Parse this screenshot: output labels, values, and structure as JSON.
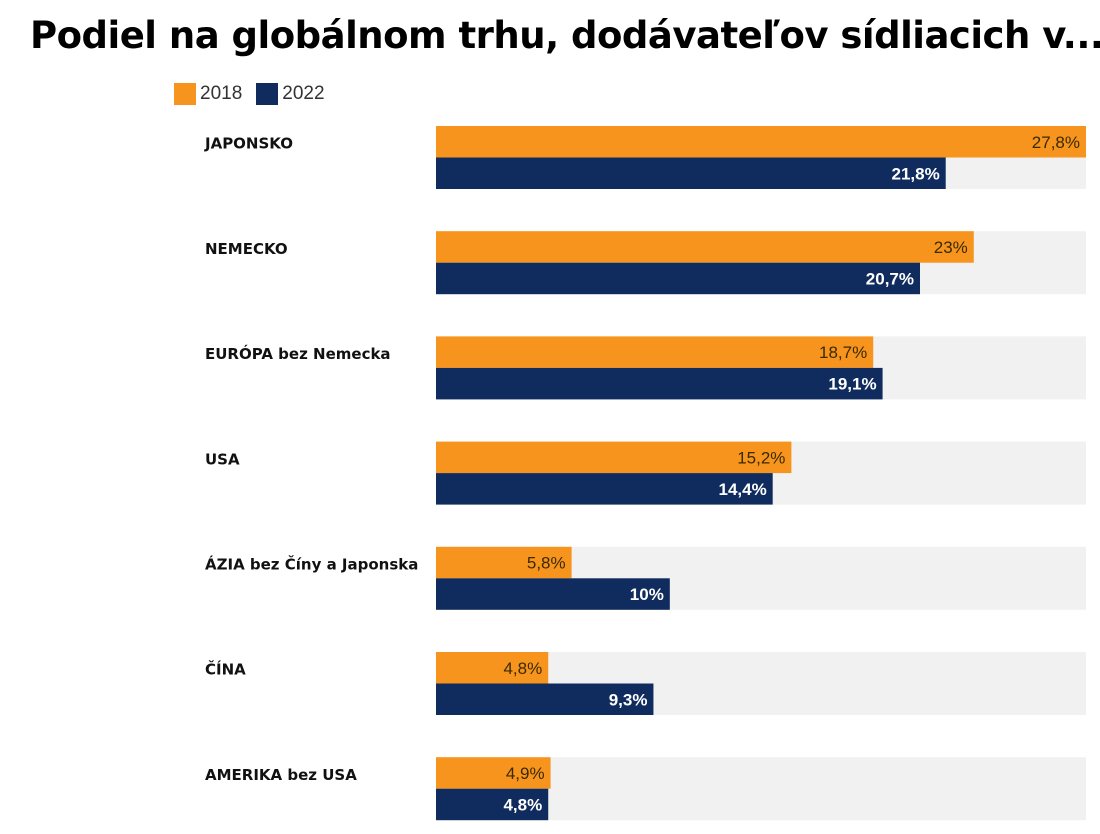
{
  "chart_data": {
    "type": "bar",
    "orientation": "horizontal",
    "title": "Podiel na globálnom trhu, dodávateľov sídliacich v...",
    "categories": [
      "JAPONSKO",
      "NEMECKO",
      "EURÓPA bez Nemecka",
      "USA",
      "ÁZIA bez Číny a Japonska",
      "ČÍNA",
      "AMERIKA bez USA"
    ],
    "series": [
      {
        "name": "2018",
        "color": "#f7941d",
        "values": [
          27.8,
          23,
          18.7,
          15.2,
          5.8,
          4.8,
          4.9
        ],
        "labels": [
          "27,8%",
          "23%",
          "18,7%",
          "15,2%",
          "5,8%",
          "4,8%",
          "4,9%"
        ]
      },
      {
        "name": "2022",
        "color": "#102c5e",
        "values": [
          21.8,
          20.7,
          19.1,
          14.4,
          10,
          9.3,
          4.8
        ],
        "labels": [
          "21,8%",
          "20,7%",
          "19,1%",
          "14,4%",
          "10%",
          "9,3%",
          "4,8%"
        ]
      }
    ],
    "xlim": [
      0,
      27.8
    ],
    "legend_position": "top-left",
    "grid": false,
    "track_color": "#f1f1f1"
  }
}
